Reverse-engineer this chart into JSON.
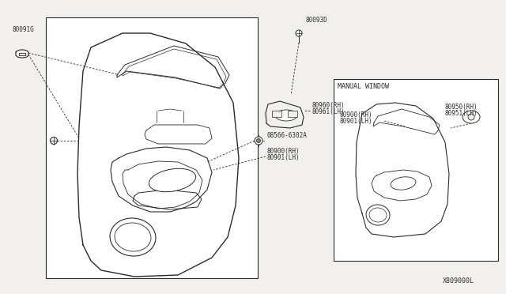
{
  "bg_color": "#f2f0ec",
  "line_color": "#2a2a2a",
  "title_bottom": "X809000L",
  "label_80091G": "80091G",
  "label_80093D": "80093D",
  "label_80960": "80960(RH)",
  "label_80961": "80961(LH)",
  "label_08566": "08566-6302A",
  "label_80900a": "80900(RH)",
  "label_80901a": "80901(LH)",
  "label_80900b": "80900(RH)",
  "label_80901b": "80901(LH)",
  "label_80950": "80950(RH)",
  "label_80951": "80951(LH)",
  "label_manual": "MANUAL WINDOW",
  "fs": 5.5,
  "fs_small": 5.0
}
